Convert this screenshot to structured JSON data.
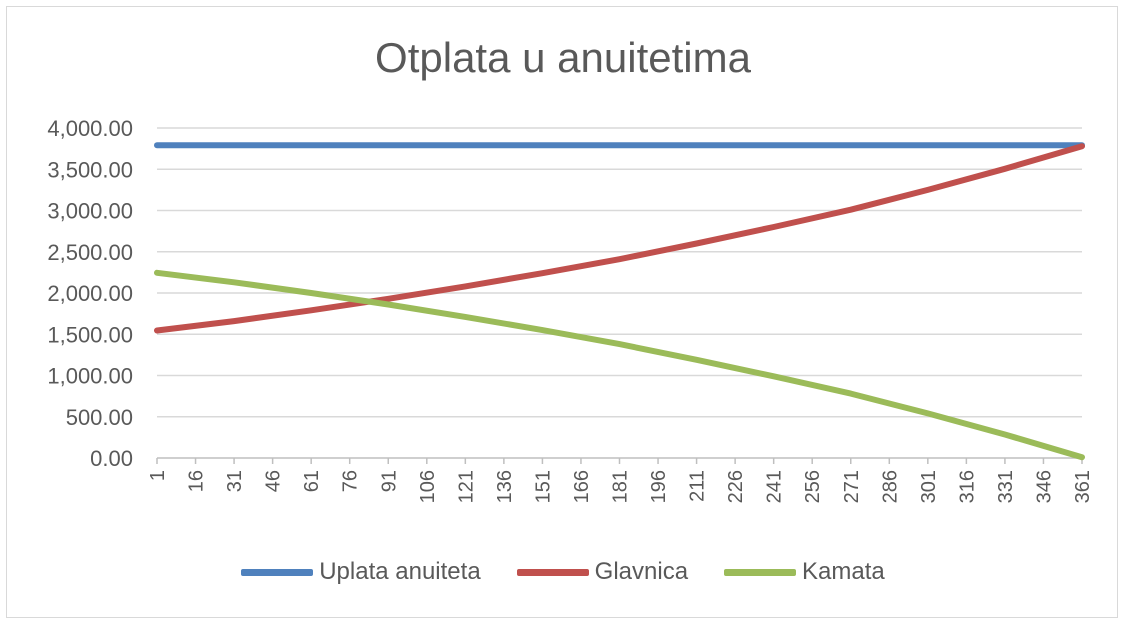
{
  "chart_data": {
    "type": "line",
    "title": "Otplata u anuitetima",
    "xlabel": "",
    "ylabel": "",
    "ylim": [
      0,
      4000
    ],
    "y_ticks": [
      "0.00",
      "500.00",
      "1,000.00",
      "1,500.00",
      "2,000.00",
      "2,500.00",
      "3,000.00",
      "3,500.00",
      "4,000.00"
    ],
    "x_ticks": [
      1,
      16,
      31,
      46,
      61,
      76,
      91,
      106,
      121,
      136,
      151,
      166,
      181,
      196,
      211,
      226,
      241,
      256,
      271,
      286,
      301,
      316,
      331,
      346,
      361
    ],
    "xlim": [
      1,
      361
    ],
    "grid": true,
    "legend_position": "bottom",
    "series": [
      {
        "name": "Uplata anuiteta",
        "color": "#4f81bd",
        "x": [
          1,
          361
        ],
        "values": [
          3790,
          3790
        ]
      },
      {
        "name": "Glavnica",
        "color": "#c0504d",
        "x": [
          1,
          31,
          61,
          91,
          121,
          151,
          181,
          211,
          241,
          271,
          301,
          331,
          361
        ],
        "values": [
          1545,
          1660,
          1790,
          1930,
          2080,
          2240,
          2410,
          2600,
          2800,
          3010,
          3250,
          3505,
          3780
        ]
      },
      {
        "name": "Kamata",
        "color": "#9bbb59",
        "x": [
          1,
          31,
          61,
          91,
          121,
          151,
          181,
          211,
          241,
          271,
          301,
          331,
          361
        ],
        "values": [
          2245,
          2130,
          2000,
          1860,
          1710,
          1550,
          1380,
          1190,
          990,
          780,
          540,
          285,
          10
        ]
      }
    ]
  }
}
